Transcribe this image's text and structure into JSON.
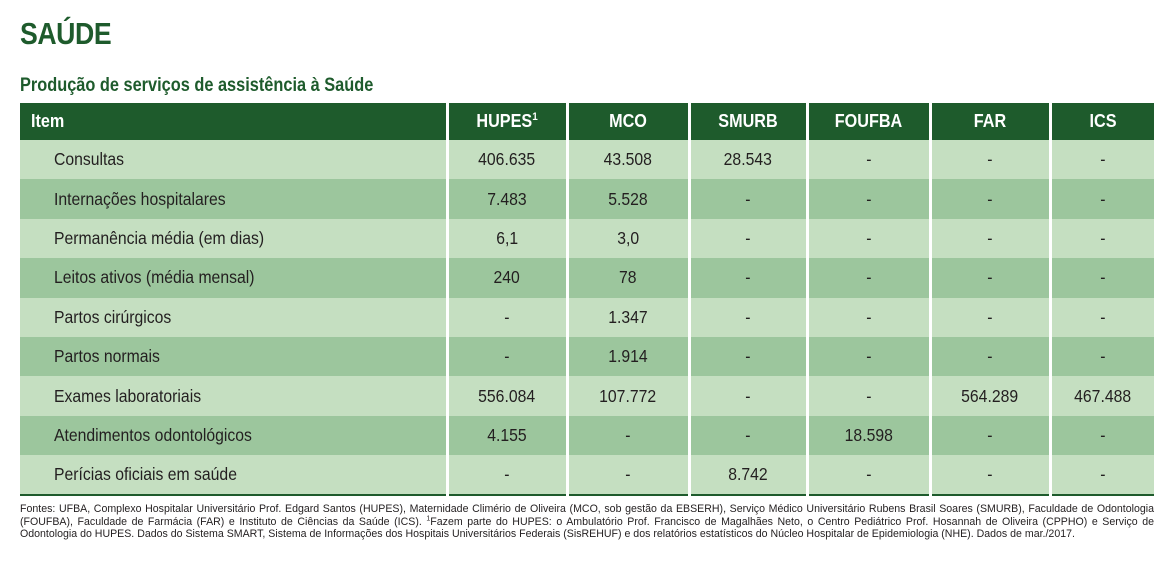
{
  "heading": {
    "title": "SAÚDE",
    "subtitle": "Produção de serviços de assistência à Saúde"
  },
  "colors": {
    "header_green": "#1e5b2c",
    "row_light": "#c5dfc1",
    "row_dark": "#9cc69d"
  },
  "table": {
    "columns": {
      "item": "Item",
      "hupes": "HUPES",
      "hupes_sup": "1",
      "mco": "MCO",
      "smurb": "SMURB",
      "foufba": "FOUFBA",
      "far": "FAR",
      "ics": "ICS"
    },
    "rows": [
      {
        "label": "Consultas",
        "values": [
          "406.635",
          "43.508",
          "28.543",
          "-",
          "-",
          "-"
        ]
      },
      {
        "label": "Internações hospitalares",
        "values": [
          "7.483",
          "5.528",
          "-",
          "-",
          "-",
          "-"
        ]
      },
      {
        "label": "Permanência média (em dias)",
        "values": [
          "6,1",
          "3,0",
          "-",
          "-",
          "-",
          "-"
        ]
      },
      {
        "label": "Leitos ativos (média mensal)",
        "values": [
          "240",
          "78",
          "-",
          "-",
          "-",
          "-"
        ]
      },
      {
        "label": "Partos cirúrgicos",
        "values": [
          "-",
          "1.347",
          "-",
          "-",
          "-",
          "-"
        ]
      },
      {
        "label": "Partos normais",
        "values": [
          "-",
          "1.914",
          "-",
          "-",
          "-",
          "-"
        ]
      },
      {
        "label": "Exames laboratoriais",
        "values": [
          "556.084",
          "107.772",
          "-",
          "-",
          "564.289",
          "467.488"
        ]
      },
      {
        "label": "Atendimentos odontológicos",
        "values": [
          "4.155",
          "-",
          "-",
          "18.598",
          "-",
          "-"
        ]
      },
      {
        "label": "Perícias oficiais em saúde",
        "values": [
          "-",
          "-",
          "8.742",
          "-",
          "-",
          "-"
        ]
      }
    ]
  },
  "footnote": {
    "sources": "Fontes: UFBA, Complexo Hospitalar Universitário Prof. Edgard Santos (HUPES), Maternidade Climério de Oliveira (MCO, sob gestão da EBSERH), Serviço Médico Universitário Rubens Brasil Soares (SMURB), Faculdade de Odontologia (FOUFBA), Faculdade de Farmácia (FAR) e Instituto de Ciências da Saúde (ICS).",
    "note_marker": "1",
    "note": "Fazem parte do HUPES: o Ambulatório Prof. Francisco de Magalhães Neto, o Centro Pediátrico Prof. Hosannah de Oliveira (CPPHO) e Serviço de Odontologia do HUPES. Dados do Sistema SMART, Sistema de Informações dos Hospitais Universitários Federais (SisREHUF) e dos relatórios estatísticos do Núcleo Hospitalar de Epidemiologia (NHE). Dados de mar./2017."
  }
}
